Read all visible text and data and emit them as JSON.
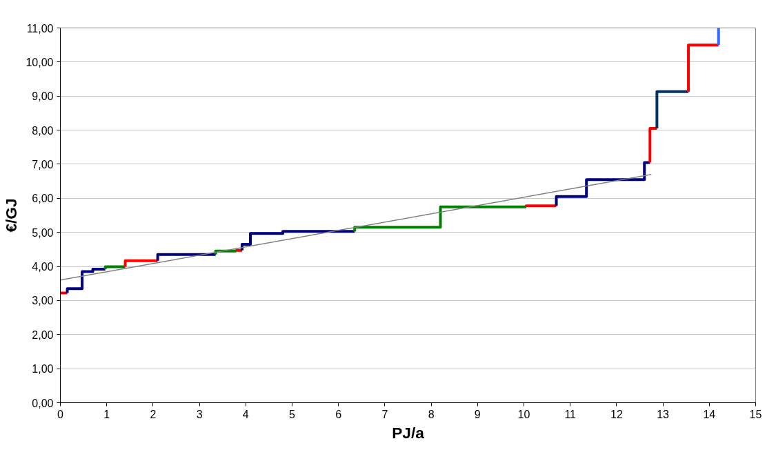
{
  "chart_data": {
    "type": "line",
    "xlabel": "PJ/a",
    "ylabel": "€/GJ",
    "xlim": [
      0,
      15
    ],
    "xticks": [
      0,
      1,
      2,
      3,
      4,
      5,
      6,
      7,
      8,
      9,
      10,
      11,
      12,
      13,
      14,
      15
    ],
    "ylim": [
      0,
      11
    ],
    "yticks": [
      {
        "value": 0,
        "label": "0,00"
      },
      {
        "value": 1,
        "label": "1,00"
      },
      {
        "value": 2,
        "label": "2,00"
      },
      {
        "value": 3,
        "label": "3,00"
      },
      {
        "value": 4,
        "label": "4,00"
      },
      {
        "value": 5,
        "label": "5,00"
      },
      {
        "value": 6,
        "label": "6,00"
      },
      {
        "value": 7,
        "label": "7,00"
      },
      {
        "value": 8,
        "label": "8,00"
      },
      {
        "value": 9,
        "label": "9,00"
      },
      {
        "value": 10,
        "label": "10,00"
      },
      {
        "value": 11,
        "label": "11,00"
      }
    ],
    "grid": "y",
    "marker": "none",
    "line_style": "solid",
    "series": [
      {
        "color": "#ff0000",
        "x": [
          0,
          0.15
        ],
        "values": [
          3.22,
          3.22
        ]
      },
      {
        "color": "#000080",
        "x": [
          0.15,
          0.15,
          0.47,
          0.47,
          0.7,
          0.7,
          0.97
        ],
        "values": [
          3.22,
          3.35,
          3.35,
          3.85,
          3.85,
          3.92,
          3.92
        ]
      },
      {
        "color": "#008000",
        "x": [
          0.97,
          0.97,
          1.4
        ],
        "values": [
          3.92,
          3.99,
          3.99
        ]
      },
      {
        "color": "#ff0000",
        "x": [
          1.4,
          1.4,
          2.1
        ],
        "values": [
          3.99,
          4.17,
          4.17
        ]
      },
      {
        "color": "#000080",
        "x": [
          2.1,
          2.1,
          3.35
        ],
        "values": [
          4.17,
          4.35,
          4.35
        ]
      },
      {
        "color": "#008000",
        "x": [
          3.35,
          3.35,
          3.8
        ],
        "values": [
          4.35,
          4.45,
          4.45
        ]
      },
      {
        "color": "#ff0000",
        "x": [
          3.8,
          3.8,
          3.92
        ],
        "values": [
          4.45,
          4.47,
          4.47
        ]
      },
      {
        "color": "#000080",
        "x": [
          3.92,
          3.92,
          4.1,
          4.1,
          4.8,
          4.8,
          6.35
        ],
        "values": [
          4.47,
          4.65,
          4.65,
          4.97,
          4.97,
          5.03,
          5.03
        ]
      },
      {
        "color": "#008000",
        "x": [
          6.35,
          6.35,
          8.2,
          8.2,
          10.05
        ],
        "values": [
          5.03,
          5.15,
          5.15,
          5.75,
          5.75
        ]
      },
      {
        "color": "#ff0000",
        "x": [
          10.05,
          10.05,
          10.7
        ],
        "values": [
          5.75,
          5.78,
          5.78
        ]
      },
      {
        "color": "#000080",
        "x": [
          10.7,
          10.7,
          11.35,
          11.35,
          12.6,
          12.6,
          12.72
        ],
        "values": [
          5.78,
          6.05,
          6.05,
          6.55,
          6.55,
          7.05,
          7.05
        ]
      },
      {
        "color": "#ff0000",
        "x": [
          12.72,
          12.72,
          12.87
        ],
        "values": [
          7.05,
          8.05,
          8.05
        ]
      },
      {
        "color": "#003366",
        "x": [
          12.87,
          12.87,
          13.55
        ],
        "values": [
          8.05,
          9.13,
          9.13
        ]
      },
      {
        "color": "#ff0000",
        "x": [
          13.55,
          13.55,
          14.2
        ],
        "values": [
          9.13,
          10.5,
          10.5
        ]
      },
      {
        "color": "#3366ff",
        "x": [
          14.2,
          14.2
        ],
        "values": [
          10.5,
          11
        ]
      },
      {
        "color": "#808080",
        "x": [
          0,
          12.75
        ],
        "values": [
          3.6,
          6.7
        ]
      }
    ]
  }
}
